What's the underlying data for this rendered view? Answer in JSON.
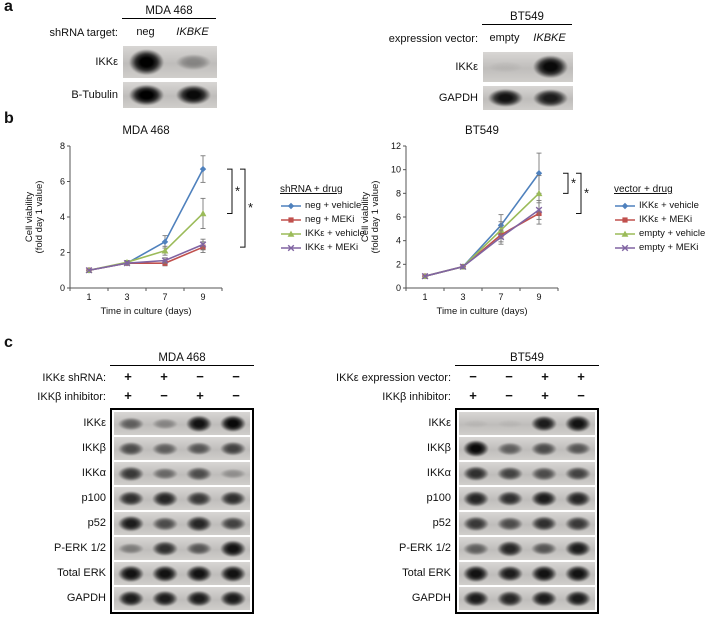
{
  "panels": {
    "a": "a",
    "b": "b",
    "c": "c"
  },
  "panel_a": {
    "left": {
      "title": "MDA 468",
      "condition_label": "shRNA target:",
      "lanes": [
        {
          "text": "neg",
          "italic": false
        },
        {
          "text": "IKBKE",
          "italic": true
        }
      ],
      "rows": [
        {
          "label": "IKKε",
          "bands": [
            1.0,
            0.3
          ]
        },
        {
          "label": "B-Tubulin",
          "bands": [
            1.0,
            0.95
          ]
        }
      ]
    },
    "right": {
      "title": "BT549",
      "condition_label": "expression vector:",
      "lanes": [
        {
          "text": "empty",
          "italic": false
        },
        {
          "text": "IKBKE",
          "italic": true
        }
      ],
      "rows": [
        {
          "label": "IKKε",
          "bands": [
            0.04,
            0.95
          ]
        },
        {
          "label": "GAPDH",
          "bands": [
            0.9,
            0.85
          ]
        }
      ]
    }
  },
  "chart_data": [
    {
      "type": "line",
      "title": "MDA 468",
      "xlabel": "Time in culture (days)",
      "ylabel": "Cell viability (fold day 1 value)",
      "ylabel_lines": [
        "Cell viability",
        "(fold day 1 value)"
      ],
      "x": [
        1,
        3,
        7,
        9
      ],
      "ylim": [
        0,
        8
      ],
      "yticks": [
        0,
        2,
        4,
        6,
        8
      ],
      "legend_title": "shRNA + drug",
      "legend_position": "right",
      "grid": false,
      "series": [
        {
          "name": "neg + vehicle",
          "color": "#4f81bd",
          "marker": "diamond",
          "values": [
            1.0,
            1.4,
            2.6,
            6.7
          ],
          "errors": [
            0.05,
            0.1,
            0.35,
            0.75
          ]
        },
        {
          "name": "neg + MEKi",
          "color": "#c0504d",
          "marker": "square",
          "values": [
            1.0,
            1.4,
            1.4,
            2.3
          ],
          "errors": [
            0.05,
            0.1,
            0.15,
            0.3
          ]
        },
        {
          "name": "IKKε + vehicle",
          "color": "#9bbb59",
          "marker": "triangle",
          "values": [
            1.0,
            1.45,
            2.1,
            4.2
          ],
          "errors": [
            0.05,
            0.1,
            0.25,
            0.85
          ]
        },
        {
          "name": "IKKε + MEKi",
          "color": "#8064a2",
          "marker": "x",
          "values": [
            1.0,
            1.4,
            1.55,
            2.45
          ],
          "errors": [
            0.05,
            0.1,
            0.15,
            0.3
          ]
        }
      ],
      "brackets": [
        {
          "top": 6.7,
          "bottom": 4.2,
          "label": "*"
        },
        {
          "top": 6.7,
          "bottom": 2.3,
          "label": "*"
        }
      ]
    },
    {
      "type": "line",
      "title": "BT549",
      "xlabel": "Time in culture (days)",
      "ylabel": "Cell viability (fold day 1 value)",
      "ylabel_lines": [
        "Cell viability",
        "(fold day 1 value)"
      ],
      "x": [
        1,
        3,
        7,
        9
      ],
      "ylim": [
        0,
        12
      ],
      "yticks": [
        0,
        2,
        4,
        6,
        8,
        10,
        12
      ],
      "legend_title": "vector + drug",
      "legend_position": "right",
      "grid": false,
      "series": [
        {
          "name": "IKKε + vehicle",
          "color": "#4f81bd",
          "marker": "diamond",
          "values": [
            1.0,
            1.8,
            5.3,
            9.7
          ],
          "errors": [
            0.05,
            0.15,
            0.9,
            1.7
          ]
        },
        {
          "name": "IKKε + MEKi",
          "color": "#c0504d",
          "marker": "square",
          "values": [
            1.0,
            1.8,
            4.5,
            6.3
          ],
          "errors": [
            0.05,
            0.15,
            0.6,
            0.9
          ]
        },
        {
          "name": "empty + vehicle",
          "color": "#9bbb59",
          "marker": "triangle",
          "values": [
            1.0,
            1.8,
            4.9,
            8.0
          ],
          "errors": [
            0.05,
            0.15,
            0.7,
            1.5
          ]
        },
        {
          "name": "empty + MEKi",
          "color": "#8064a2",
          "marker": "x",
          "values": [
            1.0,
            1.8,
            4.3,
            6.6
          ],
          "errors": [
            0.05,
            0.15,
            0.6,
            0.8
          ]
        }
      ],
      "brackets": [
        {
          "top": 9.7,
          "bottom": 8.0,
          "label": "*"
        },
        {
          "top": 9.7,
          "bottom": 6.3,
          "label": "*"
        }
      ]
    }
  ],
  "panel_c": {
    "left": {
      "title": "MDA 468",
      "condition_rows": [
        {
          "label": "IKKε shRNA:",
          "values": [
            "+",
            "+",
            "−",
            "−"
          ]
        },
        {
          "label": "IKKβ inhibitor:",
          "values": [
            "+",
            "−",
            "+",
            "−"
          ]
        }
      ],
      "rows": [
        {
          "label": "IKKε",
          "bands": [
            0.5,
            0.3,
            0.9,
            0.95
          ]
        },
        {
          "label": "IKKβ",
          "bands": [
            0.6,
            0.5,
            0.55,
            0.65
          ]
        },
        {
          "label": "IKKα",
          "bands": [
            0.7,
            0.45,
            0.6,
            0.25
          ]
        },
        {
          "label": "p100",
          "bands": [
            0.75,
            0.8,
            0.7,
            0.75
          ]
        },
        {
          "label": "p52",
          "bands": [
            0.85,
            0.6,
            0.8,
            0.65
          ]
        },
        {
          "label": "P-ERK 1/2",
          "bands": [
            0.35,
            0.75,
            0.55,
            0.9
          ]
        },
        {
          "label": "Total ERK",
          "bands": [
            0.9,
            0.9,
            0.9,
            0.9
          ]
        },
        {
          "label": "GAPDH",
          "bands": [
            0.85,
            0.85,
            0.85,
            0.85
          ]
        }
      ]
    },
    "right": {
      "title": "BT549",
      "condition_rows": [
        {
          "label": "IKKε expression vector:",
          "values": [
            "−",
            "−",
            "+",
            "+"
          ]
        },
        {
          "label": "IKKβ inhibitor:",
          "values": [
            "+",
            "−",
            "+",
            "−"
          ]
        }
      ],
      "rows": [
        {
          "label": "IKKε",
          "bands": [
            0.04,
            0.04,
            0.85,
            0.9
          ]
        },
        {
          "label": "IKKβ",
          "bands": [
            0.95,
            0.5,
            0.6,
            0.55
          ]
        },
        {
          "label": "IKKα",
          "bands": [
            0.75,
            0.65,
            0.6,
            0.65
          ]
        },
        {
          "label": "p100",
          "bands": [
            0.8,
            0.75,
            0.85,
            0.8
          ]
        },
        {
          "label": "p52",
          "bands": [
            0.7,
            0.6,
            0.75,
            0.7
          ]
        },
        {
          "label": "P-ERK 1/2",
          "bands": [
            0.5,
            0.8,
            0.55,
            0.85
          ]
        },
        {
          "label": "Total ERK",
          "bands": [
            0.9,
            0.85,
            0.9,
            0.9
          ]
        },
        {
          "label": "GAPDH",
          "bands": [
            0.85,
            0.8,
            0.85,
            0.85
          ]
        }
      ]
    }
  }
}
